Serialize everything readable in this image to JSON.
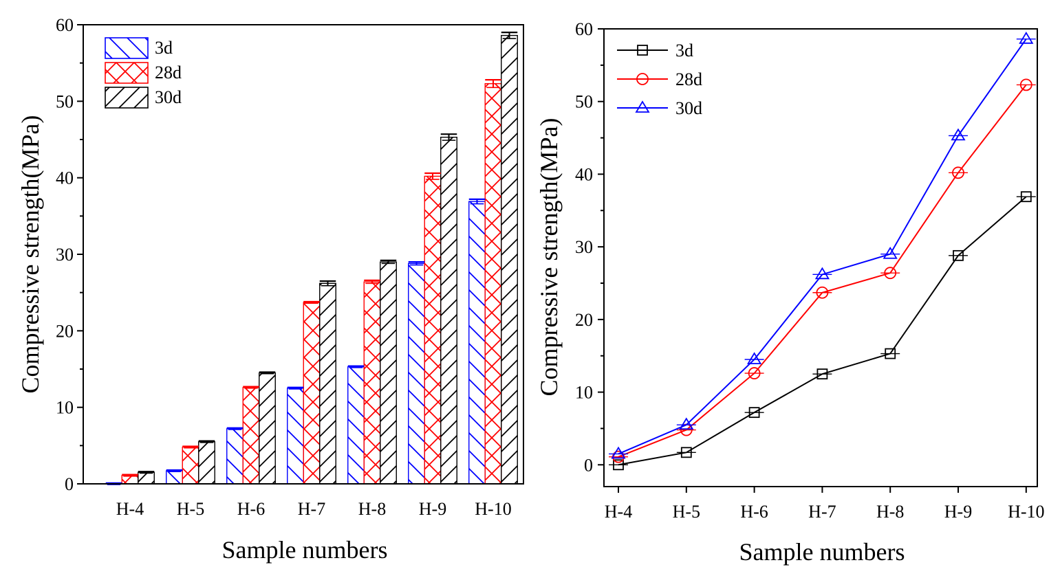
{
  "chart_data": [
    {
      "type": "bar",
      "categories": [
        "H-4",
        "H-5",
        "H-6",
        "H-7",
        "H-8",
        "H-9",
        "H-10"
      ],
      "series": [
        {
          "name": "3d",
          "values": [
            0,
            1.7,
            7.2,
            12.5,
            15.3,
            28.8,
            36.9
          ],
          "errors": [
            0.1,
            0.1,
            0.1,
            0.1,
            0.1,
            0.2,
            0.3
          ],
          "color": "#0000ff",
          "pattern": "backslash-hatch"
        },
        {
          "name": "28d",
          "values": [
            1.1,
            4.8,
            12.6,
            23.7,
            26.4,
            40.2,
            52.3
          ],
          "errors": [
            0.1,
            0.1,
            0.1,
            0.1,
            0.2,
            0.4,
            0.5
          ],
          "color": "#ff0000",
          "pattern": "cross-hatch"
        },
        {
          "name": "30d",
          "values": [
            1.5,
            5.5,
            14.5,
            26.2,
            29.0,
            45.3,
            58.6
          ],
          "errors": [
            0.1,
            0.1,
            0.1,
            0.3,
            0.2,
            0.4,
            0.4
          ],
          "color": "#000000",
          "pattern": "slash-hatch"
        }
      ],
      "title": "",
      "xlabel": "Sample numbers",
      "ylabel": "Compressive strength(MPa)",
      "ylim": [
        0,
        60
      ],
      "yticks": [
        0,
        10,
        20,
        30,
        40,
        50,
        60
      ],
      "legend": "top-left",
      "grid": false
    },
    {
      "type": "line",
      "categories": [
        "H-4",
        "H-5",
        "H-6",
        "H-7",
        "H-8",
        "H-9",
        "H-10"
      ],
      "series": [
        {
          "name": "3d",
          "values": [
            0,
            1.7,
            7.2,
            12.5,
            15.3,
            28.8,
            36.9
          ],
          "color": "#000000",
          "marker": "square"
        },
        {
          "name": "28d",
          "values": [
            1.1,
            4.8,
            12.6,
            23.7,
            26.4,
            40.2,
            52.3
          ],
          "color": "#ff0000",
          "marker": "circle"
        },
        {
          "name": "30d",
          "values": [
            1.5,
            5.5,
            14.5,
            26.2,
            29.0,
            45.3,
            58.6
          ],
          "color": "#0000ff",
          "marker": "triangle"
        }
      ],
      "title": "",
      "xlabel": "Sample numbers",
      "ylabel": "Compressive strength(MPa)",
      "ylim": [
        -3,
        60
      ],
      "yticks": [
        0,
        10,
        20,
        30,
        40,
        50,
        60
      ],
      "legend": "top-left",
      "grid": false
    }
  ]
}
